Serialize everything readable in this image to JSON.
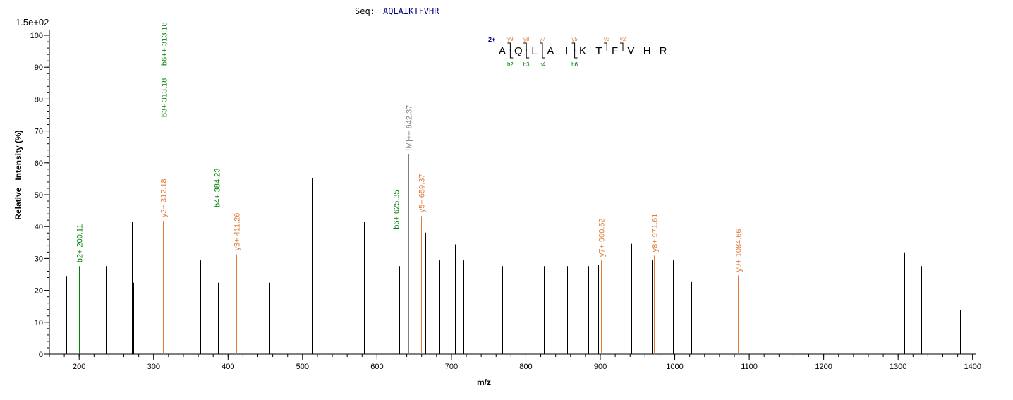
{
  "header": {
    "seq_label": "Seq:",
    "seq_value": "AQLAIKTFVHR",
    "scale_label": "1.5e+02"
  },
  "colors": {
    "peak": "#000000",
    "b_ion": "#008000",
    "y_ion": "#e07b39",
    "precursor": "#808080",
    "charge": "#00008b",
    "seq_value": "#000080"
  },
  "fragment_map": {
    "charge": "2+",
    "residues": [
      "A",
      "Q",
      "L",
      "A",
      "I",
      "K",
      "T",
      "F",
      "V",
      "H",
      "R"
    ],
    "y_marks": [
      {
        "after_residue": 1,
        "label": "y9"
      },
      {
        "after_residue": 2,
        "label": "y8"
      },
      {
        "after_residue": 3,
        "label": "y7"
      },
      {
        "after_residue": 5,
        "label": "y5"
      },
      {
        "after_residue": 7,
        "label": "y3"
      },
      {
        "after_residue": 8,
        "label": "y2"
      }
    ],
    "b_marks": [
      {
        "after_residue": 1,
        "label": "b2"
      },
      {
        "after_residue": 2,
        "label": "b3"
      },
      {
        "after_residue": 3,
        "label": "b4"
      },
      {
        "after_residue": 5,
        "label": "b6"
      }
    ]
  },
  "chart_data": {
    "type": "bar",
    "xlabel": "m/z",
    "ylabel": "Relative   Intensity (%)",
    "xlim": [
      160,
      1405
    ],
    "ylim": [
      0,
      100
    ],
    "x_ticks": [
      200,
      300,
      400,
      500,
      600,
      700,
      800,
      900,
      1000,
      1100,
      1200,
      1300,
      1400
    ],
    "x_minor_step": 20,
    "y_ticks": [
      0,
      10,
      20,
      30,
      40,
      50,
      60,
      70,
      80,
      90,
      100
    ],
    "y_minor_step": 2,
    "peaks": [
      {
        "mz": 183,
        "intensity": 24.5
      },
      {
        "mz": 200.11,
        "intensity": 27.6,
        "ion": "b",
        "label": "b2+ 200.11"
      },
      {
        "mz": 236,
        "intensity": 27.6
      },
      {
        "mz": 269,
        "intensity": 41.6
      },
      {
        "mz": 271,
        "intensity": 41.6
      },
      {
        "mz": 273,
        "intensity": 22.4
      },
      {
        "mz": 284,
        "intensity": 22.4
      },
      {
        "mz": 297,
        "intensity": 29.4
      },
      {
        "mz": 312.18,
        "intensity": 41.8,
        "ion": "y",
        "label": "y2+ 312.18"
      },
      {
        "mz": 313.18,
        "intensity": 73.2,
        "ion": "b",
        "label": "b3+ 313.18",
        "label2": "b6++ 313.18"
      },
      {
        "mz": 320,
        "intensity": 24.5
      },
      {
        "mz": 343,
        "intensity": 27.6
      },
      {
        "mz": 363,
        "intensity": 29.4
      },
      {
        "mz": 384.23,
        "intensity": 44.9,
        "ion": "b",
        "label": "b4+ 384.23"
      },
      {
        "mz": 386,
        "intensity": 22.4
      },
      {
        "mz": 411.26,
        "intensity": 31.3,
        "ion": "y",
        "label": "y3+ 411.26"
      },
      {
        "mz": 456,
        "intensity": 22.4
      },
      {
        "mz": 512,
        "intensity": 55.3
      },
      {
        "mz": 565,
        "intensity": 27.6
      },
      {
        "mz": 583,
        "intensity": 41.6
      },
      {
        "mz": 625.35,
        "intensity": 38.1,
        "ion": "b",
        "label": "b6+ 625.35"
      },
      {
        "mz": 630,
        "intensity": 27.6
      },
      {
        "mz": 642.37,
        "intensity": 62.7,
        "ion": "M",
        "label": "[M]++ 642.37"
      },
      {
        "mz": 655,
        "intensity": 34.9
      },
      {
        "mz": 659.37,
        "intensity": 43.3,
        "ion": "y",
        "label": "y5+ 659.37"
      },
      {
        "mz": 664,
        "intensity": 77.6
      },
      {
        "mz": 665,
        "intensity": 38.1
      },
      {
        "mz": 684,
        "intensity": 29.4
      },
      {
        "mz": 705,
        "intensity": 34.4
      },
      {
        "mz": 716,
        "intensity": 29.4
      },
      {
        "mz": 768,
        "intensity": 27.6
      },
      {
        "mz": 796,
        "intensity": 29.4
      },
      {
        "mz": 824,
        "intensity": 27.6
      },
      {
        "mz": 832,
        "intensity": 62.4
      },
      {
        "mz": 855,
        "intensity": 27.6
      },
      {
        "mz": 884,
        "intensity": 27.6
      },
      {
        "mz": 897,
        "intensity": 28.1
      },
      {
        "mz": 900.52,
        "intensity": 29.4,
        "ion": "y",
        "label": "y7+ 900.52"
      },
      {
        "mz": 927,
        "intensity": 48.5
      },
      {
        "mz": 934,
        "intensity": 41.6
      },
      {
        "mz": 942,
        "intensity": 34.6
      },
      {
        "mz": 944,
        "intensity": 27.6
      },
      {
        "mz": 969,
        "intensity": 29.4
      },
      {
        "mz": 971.61,
        "intensity": 30.9,
        "ion": "y",
        "label": "y8+ 971.61"
      },
      {
        "mz": 998,
        "intensity": 29.4
      },
      {
        "mz": 1015,
        "intensity": 100.5
      },
      {
        "mz": 1022,
        "intensity": 22.6
      },
      {
        "mz": 1084.66,
        "intensity": 24.7,
        "ion": "y",
        "label": "y9+ 1084.66"
      },
      {
        "mz": 1111,
        "intensity": 31.3
      },
      {
        "mz": 1127,
        "intensity": 20.8
      },
      {
        "mz": 1308,
        "intensity": 31.9
      },
      {
        "mz": 1331,
        "intensity": 27.6
      },
      {
        "mz": 1383,
        "intensity": 13.8
      }
    ]
  }
}
